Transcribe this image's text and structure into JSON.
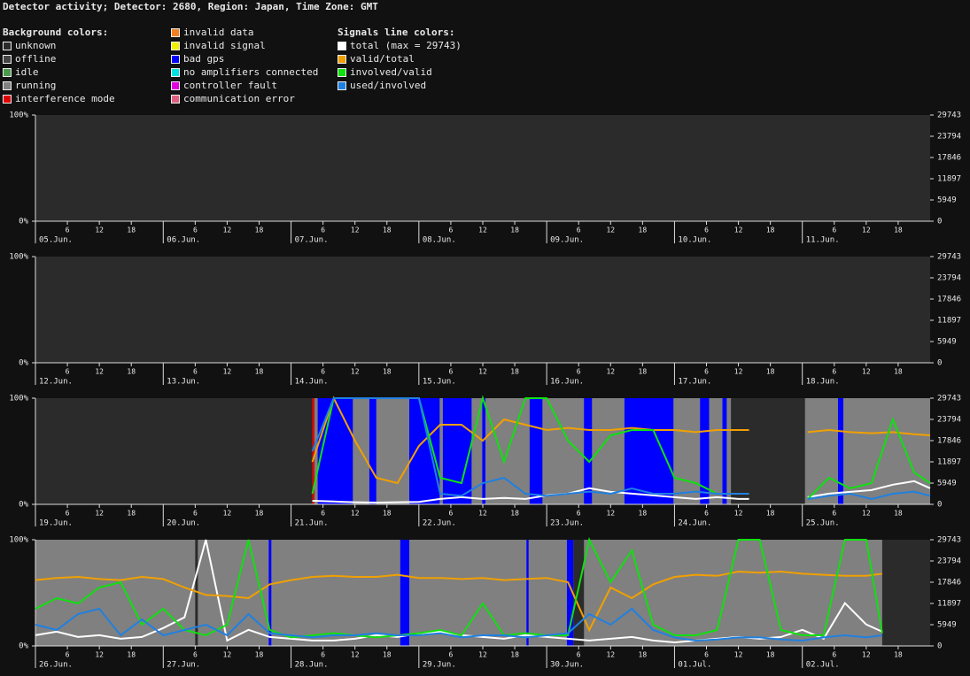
{
  "title": "Detector activity; Detector: 2680, Region: Japan, Time Zone: GMT",
  "legend": {
    "background_title": "Background colors:",
    "background": [
      {
        "name": "unknown",
        "color": "#2b2b2b"
      },
      {
        "name": "offline",
        "color": "#444444"
      },
      {
        "name": "idle",
        "color": "#4c9a4c"
      },
      {
        "name": "running",
        "color": "#808080"
      },
      {
        "name": "interference mode",
        "color": "#e00000"
      },
      {
        "name": "invalid data",
        "color": "#f08020"
      },
      {
        "name": "invalid signal",
        "color": "#f0f000"
      },
      {
        "name": "bad gps",
        "color": "#0000ff"
      },
      {
        "name": "no amplifiers connected",
        "color": "#00e0e0"
      },
      {
        "name": "controller fault",
        "color": "#e000e0"
      },
      {
        "name": "communication error",
        "color": "#e06080"
      }
    ],
    "signals_title": "Signals line colors:",
    "signals": [
      {
        "name": "total (max = 29743)",
        "color": "#ffffff"
      },
      {
        "name": "valid/total",
        "color": "#f0a000"
      },
      {
        "name": "involved/valid",
        "color": "#10e010"
      },
      {
        "name": "used/involved",
        "color": "#2080e0"
      }
    ]
  },
  "chart_data": [
    {
      "type": "line",
      "days": [
        "05.Jun.",
        "06.Jun.",
        "07.Jun.",
        "08.Jun.",
        "09.Jun.",
        "10.Jun.",
        "11.Jun."
      ],
      "hour_ticks": [
        6,
        12,
        18
      ],
      "xlim": [
        0,
        168
      ],
      "ylim": [
        0,
        100
      ],
      "yticks": [
        {
          "value": 0,
          "label": "0%"
        },
        {
          "value": 100,
          "label": "100%"
        }
      ],
      "y2lim": [
        0,
        29743
      ],
      "y2ticks": [
        0,
        5949,
        11897,
        17846,
        23794,
        29743
      ],
      "bands": [],
      "x": [],
      "series": []
    },
    {
      "type": "line",
      "days": [
        "12.Jun.",
        "13.Jun.",
        "14.Jun.",
        "15.Jun.",
        "16.Jun.",
        "17.Jun.",
        "18.Jun."
      ],
      "hour_ticks": [
        6,
        12,
        18
      ],
      "xlim": [
        0,
        168
      ],
      "ylim": [
        0,
        100
      ],
      "yticks": [
        {
          "value": 0,
          "label": "0%"
        },
        {
          "value": 100,
          "label": "100%"
        }
      ],
      "y2lim": [
        0,
        29743
      ],
      "y2ticks": [
        0,
        5949,
        11897,
        17846,
        23794,
        29743
      ],
      "bands": [],
      "x": [],
      "series": []
    },
    {
      "type": "line",
      "days": [
        "19.Jun.",
        "20.Jun.",
        "21.Jun.",
        "22.Jun.",
        "23.Jun.",
        "24.Jun.",
        "25.Jun."
      ],
      "hour_ticks": [
        6,
        12,
        18
      ],
      "xlim": [
        0,
        168
      ],
      "ylim": [
        0,
        100
      ],
      "yticks": [
        {
          "value": 0,
          "label": "0%"
        },
        {
          "value": 100,
          "label": "100%"
        }
      ],
      "y2lim": [
        0,
        29743
      ],
      "y2ticks": [
        0,
        5949,
        11897,
        17846,
        23794,
        29743
      ],
      "bands": [
        {
          "x": [
            52,
            130.6
          ],
          "color": "#808080"
        },
        {
          "x": [
            144.5,
            168
          ],
          "color": "#808080"
        },
        {
          "x": [
            52,
            52.4
          ],
          "color": "#e00000"
        },
        {
          "x": [
            53,
            59.6
          ],
          "color": "#0000ff"
        },
        {
          "x": [
            62.7,
            64
          ],
          "color": "#0000ff"
        },
        {
          "x": [
            70.2,
            75.9
          ],
          "color": "#0000ff"
        },
        {
          "x": [
            76.5,
            81.9
          ],
          "color": "#0000ff"
        },
        {
          "x": [
            83.9,
            84.5
          ],
          "color": "#0000ff"
        },
        {
          "x": [
            92.8,
            95.2
          ],
          "color": "#0000ff"
        },
        {
          "x": [
            103,
            104.5
          ],
          "color": "#0000ff"
        },
        {
          "x": [
            110.6,
            119.8
          ],
          "color": "#0000ff"
        },
        {
          "x": [
            124.8,
            126.5
          ],
          "color": "#0000ff"
        },
        {
          "x": [
            129,
            129.8
          ],
          "color": "#0000ff"
        },
        {
          "x": [
            150.7,
            151.7
          ],
          "color": "#0000ff"
        }
      ],
      "x": [
        52,
        56,
        60,
        64,
        68,
        72,
        76,
        80,
        84,
        88,
        92,
        96,
        100,
        104,
        108,
        112,
        116,
        120,
        124,
        128,
        132,
        134,
        140,
        145,
        149,
        153,
        157,
        161,
        165,
        168
      ],
      "series": [
        {
          "name": "total",
          "color": "#ffffff",
          "axis": "y2",
          "values": [
            1000,
            800,
            600,
            500,
            600,
            700,
            1500,
            2000,
            1500,
            1800,
            1500,
            2500,
            3000,
            4500,
            3500,
            3000,
            2500,
            2000,
            1500,
            2000,
            1500,
            1500,
            null,
            2000,
            3000,
            3500,
            4000,
            5500,
            6500,
            4500
          ]
        },
        {
          "name": "valid/total",
          "color": "#f0a000",
          "values": [
            40,
            100,
            60,
            25,
            20,
            55,
            75,
            75,
            60,
            80,
            75,
            70,
            72,
            70,
            70,
            72,
            70,
            70,
            68,
            70,
            70,
            70,
            null,
            68,
            70,
            68,
            67,
            68,
            66,
            65
          ]
        },
        {
          "name": "involved/valid",
          "color": "#10e010",
          "values": [
            10,
            100,
            100,
            100,
            100,
            100,
            25,
            20,
            100,
            40,
            100,
            100,
            60,
            40,
            65,
            70,
            70,
            25,
            20,
            10,
            10,
            10,
            null,
            5,
            25,
            15,
            20,
            80,
            30,
            20
          ]
        },
        {
          "name": "used/involved",
          "color": "#2080e0",
          "values": [
            50,
            100,
            100,
            100,
            100,
            100,
            10,
            8,
            20,
            25,
            10,
            8,
            10,
            12,
            10,
            15,
            10,
            10,
            12,
            10,
            10,
            10,
            null,
            5,
            8,
            10,
            5,
            10,
            12,
            8
          ]
        }
      ]
    },
    {
      "type": "line",
      "days": [
        "26.Jun.",
        "27.Jun.",
        "28.Jun.",
        "29.Jun.",
        "30.Jun.",
        "01.Jul.",
        "02.Jul."
      ],
      "hour_ticks": [
        6,
        12,
        18
      ],
      "xlim": [
        0,
        168
      ],
      "ylim": [
        0,
        100
      ],
      "yticks": [
        {
          "value": 0,
          "label": "0%"
        },
        {
          "value": 100,
          "label": "100%"
        }
      ],
      "y2lim": [
        0,
        29743
      ],
      "y2ticks": [
        0,
        5949,
        11897,
        17846,
        23794,
        29743
      ],
      "bands": [
        {
          "x": [
            0,
            159
          ],
          "color": "#808080"
        },
        {
          "x": [
            30,
            30.5
          ],
          "color": "#2b2b2b"
        },
        {
          "x": [
            101,
            103
          ],
          "color": "#2b2b2b"
        },
        {
          "x": [
            43.8,
            44.3
          ],
          "color": "#0000ff"
        },
        {
          "x": [
            68.5,
            70.2
          ],
          "color": "#0000ff"
        },
        {
          "x": [
            92.2,
            92.6
          ],
          "color": "#0000ff"
        },
        {
          "x": [
            99.8,
            101
          ],
          "color": "#0000ff"
        }
      ],
      "x": [
        0,
        4,
        8,
        12,
        16,
        20,
        24,
        28,
        32,
        36,
        40,
        44,
        48,
        52,
        56,
        60,
        64,
        68,
        72,
        76,
        80,
        84,
        88,
        92,
        96,
        100,
        104,
        108,
        112,
        116,
        120,
        124,
        128,
        132,
        136,
        140,
        144,
        148,
        152,
        156,
        159
      ],
      "series": [
        {
          "name": "total",
          "color": "#ffffff",
          "axis": "y2",
          "values": [
            3000,
            4000,
            2500,
            3000,
            2000,
            2500,
            5000,
            8000,
            29743,
            1500,
            4500,
            2500,
            2000,
            1500,
            1500,
            2000,
            3000,
            2500,
            3500,
            4000,
            3000,
            2500,
            2000,
            3000,
            2500,
            2000,
            1500,
            2000,
            2500,
            1500,
            1000,
            1500,
            2000,
            2500,
            2000,
            2500,
            4500,
            2000,
            12000,
            6000,
            4000
          ]
        },
        {
          "name": "valid/total",
          "color": "#f0a000",
          "values": [
            62,
            64,
            65,
            63,
            62,
            65,
            63,
            55,
            48,
            47,
            45,
            58,
            62,
            65,
            66,
            65,
            65,
            67,
            64,
            64,
            63,
            64,
            62,
            63,
            64,
            60,
            15,
            55,
            45,
            58,
            65,
            67,
            66,
            70,
            69,
            70,
            68,
            67,
            66,
            66,
            68
          ]
        },
        {
          "name": "involved/valid",
          "color": "#10e010",
          "values": [
            35,
            45,
            40,
            55,
            60,
            20,
            35,
            15,
            10,
            20,
            100,
            15,
            8,
            10,
            12,
            10,
            8,
            10,
            12,
            15,
            10,
            40,
            10,
            12,
            10,
            10,
            100,
            60,
            90,
            20,
            10,
            10,
            15,
            100,
            100,
            15,
            10,
            10,
            100,
            100,
            12
          ]
        },
        {
          "name": "used/involved",
          "color": "#2080e0",
          "values": [
            20,
            15,
            30,
            35,
            10,
            25,
            10,
            15,
            20,
            10,
            30,
            12,
            10,
            8,
            10,
            10,
            12,
            10,
            10,
            12,
            8,
            10,
            10,
            8,
            10,
            12,
            30,
            20,
            35,
            15,
            8,
            5,
            6,
            8,
            8,
            6,
            5,
            8,
            10,
            8,
            10
          ]
        }
      ]
    }
  ]
}
